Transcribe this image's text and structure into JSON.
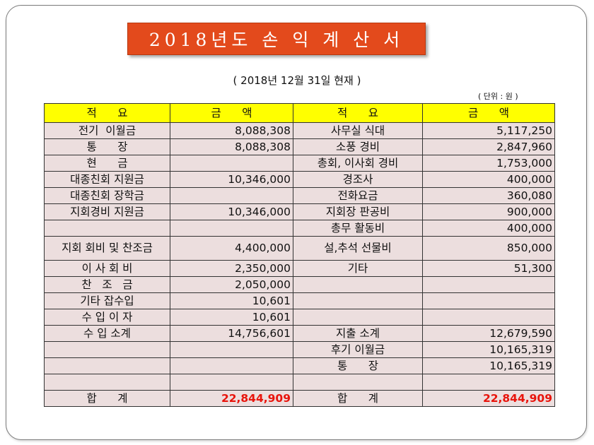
{
  "title": "2018년도 손 익 계 산 서",
  "date_line": "( 2018년 12월 31일 현재 )",
  "unit": "( 단위 : 원 )",
  "headers": [
    "적      요",
    "금      액",
    "적      요",
    "금      액"
  ],
  "rows": [
    {
      "left_item": "전기  이월금",
      "left_amount": "8,088,308",
      "right_item": "사무실 식대",
      "right_amount": "5,117,250"
    },
    {
      "left_item": "통      장",
      "left_amount": "8,088,308",
      "right_item": "소풍 경비",
      "right_amount": "2,847,960"
    },
    {
      "left_item": "현      금",
      "left_amount": "",
      "right_item": "총회, 이사회 경비",
      "right_amount": "1,753,000"
    },
    {
      "left_item": "대종친회 지원금",
      "left_amount": "10,346,000",
      "right_item": "경조사",
      "right_amount": "400,000"
    },
    {
      "left_item": "대종친회 장학금",
      "left_amount": "",
      "right_item": "전화요금",
      "right_amount": "360,080"
    },
    {
      "left_item": "지회경비 지원금",
      "left_amount": "10,346,000",
      "right_item": "지회장 판공비",
      "right_amount": "900,000"
    },
    {
      "left_item": "",
      "left_amount": "",
      "right_item": "총무 활동비",
      "right_amount": "400,000"
    },
    {
      "left_item": "지회 회비 및 찬조금",
      "left_amount": "4,400,000",
      "right_item": "설,추석 선물비",
      "right_amount": "850,000"
    },
    {
      "left_item": "이 사 회 비",
      "left_amount": "2,350,000",
      "right_item": "기타",
      "right_amount": "51,300"
    },
    {
      "left_item": "찬   조   금",
      "left_amount": "2,050,000",
      "right_item": "",
      "right_amount": ""
    },
    {
      "left_item": "기타 잡수입",
      "left_amount": "10,601",
      "right_item": "",
      "right_amount": ""
    },
    {
      "left_item": "수 입 이 자",
      "left_amount": "10,601",
      "right_item": "",
      "right_amount": ""
    },
    {
      "left_item": "수 입 소계",
      "left_amount": "14,756,601",
      "right_item": "지출 소계",
      "right_amount": "12,679,590"
    },
    {
      "left_item": "",
      "left_amount": "",
      "right_item": "후기 이월금",
      "right_amount": "10,165,319"
    },
    {
      "left_item": "",
      "left_amount": "",
      "right_item": "통      장",
      "right_amount": "10,165,319"
    },
    {
      "left_item": "",
      "left_amount": "",
      "right_item": "",
      "right_amount": ""
    }
  ],
  "total": {
    "left_item": "합      계",
    "left_amount": "22,844,909",
    "right_item": "합      계",
    "right_amount": "22,844,909"
  },
  "colors": {
    "title_bg": "#e34a1c",
    "header_bg": "#ffff00",
    "cell_bg": "#ecdede",
    "total_red": "#e8140c"
  }
}
